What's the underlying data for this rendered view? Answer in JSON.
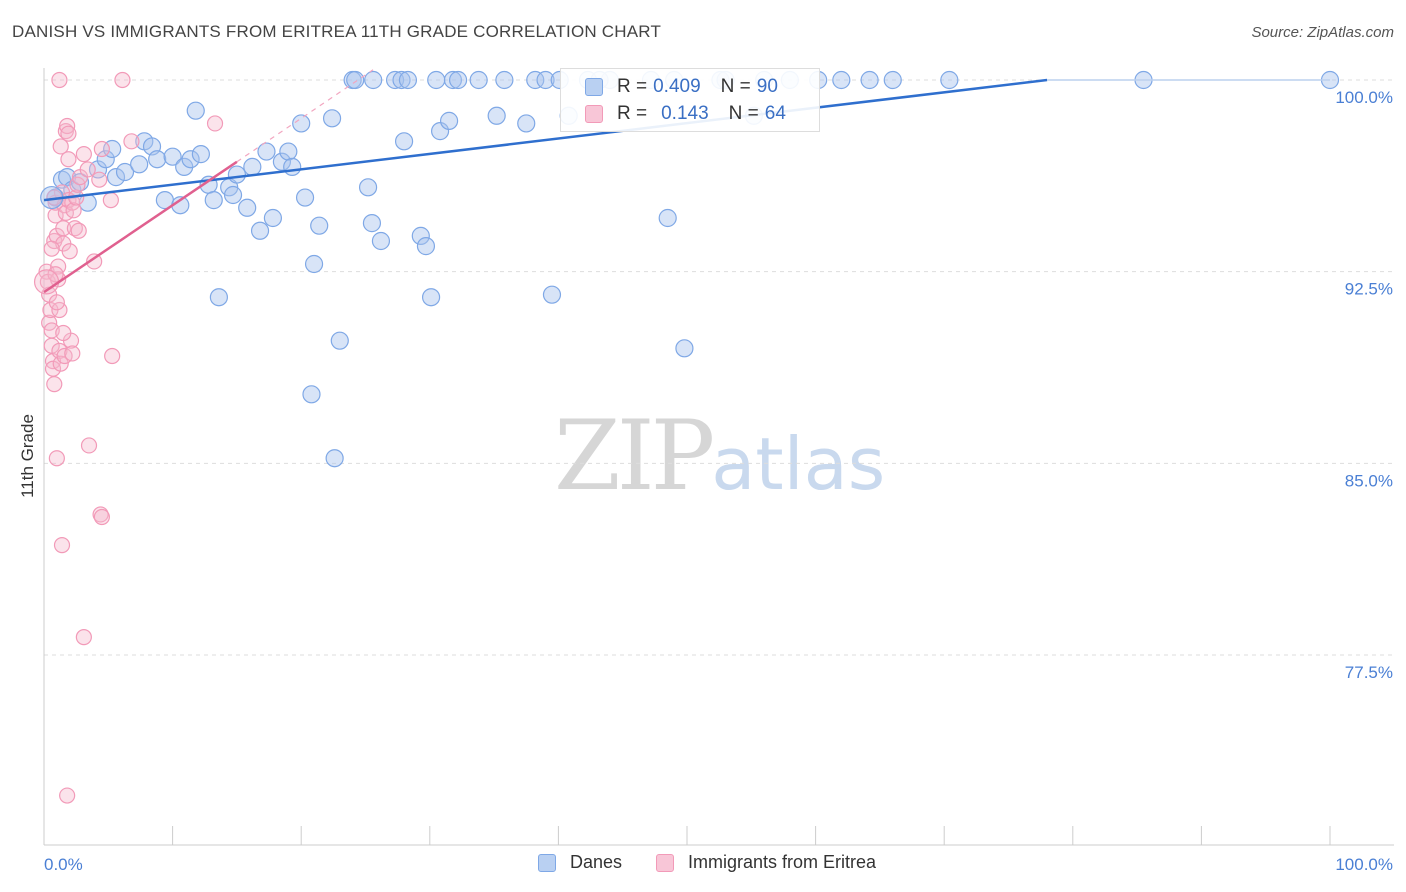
{
  "header": {
    "title": "DANISH VS IMMIGRANTS FROM ERITREA 11TH GRADE CORRELATION CHART",
    "source": "Source: ZipAtlas.com"
  },
  "watermark": {
    "zip": "ZIP",
    "atlas": "atlas"
  },
  "stats_legend": [
    {
      "r_label": "R =",
      "r_value": "0.409",
      "n_label": "N =",
      "n_value": "90",
      "color": "#7fa8e6"
    },
    {
      "r_label": "R =",
      "r_value": "0.143",
      "n_label": "N =",
      "n_value": "64",
      "color": "#f29ab8"
    }
  ],
  "bottom_legend": [
    {
      "label": "Danes",
      "color": "#7fa8e6"
    },
    {
      "label": "Immigrants from Eritrea",
      "color": "#f29ab8"
    }
  ],
  "chart_data": {
    "type": "scatter",
    "title": "DANISH VS IMMIGRANTS FROM ERITREA 11TH GRADE CORRELATION CHART",
    "xlabel": "",
    "ylabel": "11th Grade",
    "xlim": [
      0,
      100
    ],
    "ylim": [
      70.0,
      100.7
    ],
    "x_tick_labels": [
      "0.0%",
      "100.0%"
    ],
    "y_ticks": [
      77.5,
      85.0,
      92.5,
      100.0
    ],
    "y_tick_labels": [
      "77.5%",
      "85.0%",
      "92.5%",
      "100.0%"
    ],
    "grid": true,
    "legend": "bottom",
    "series": [
      {
        "name": "Danes",
        "color": "#4a7fd4",
        "trend": {
          "x": [
            0,
            78
          ],
          "y": [
            95.3,
            100.0
          ]
        },
        "points": [
          [
            0.9,
            95.4
          ],
          [
            1.4,
            96.1
          ],
          [
            1.8,
            96.2
          ],
          [
            2.2,
            95.7
          ],
          [
            2.8,
            96.0
          ],
          [
            3.4,
            95.2
          ],
          [
            4.2,
            96.5
          ],
          [
            4.8,
            96.9
          ],
          [
            5.3,
            97.3
          ],
          [
            5.6,
            96.2
          ],
          [
            6.3,
            96.4
          ],
          [
            7.4,
            96.7
          ],
          [
            7.8,
            97.6
          ],
          [
            8.4,
            97.4
          ],
          [
            8.8,
            96.9
          ],
          [
            9.4,
            95.3
          ],
          [
            10.0,
            97.0
          ],
          [
            10.6,
            95.1
          ],
          [
            10.9,
            96.6
          ],
          [
            11.4,
            96.9
          ],
          [
            11.8,
            98.8
          ],
          [
            12.2,
            97.1
          ],
          [
            12.8,
            95.9
          ],
          [
            13.2,
            95.3
          ],
          [
            14.4,
            95.8
          ],
          [
            14.7,
            95.5
          ],
          [
            15.0,
            96.3
          ],
          [
            15.8,
            95.0
          ],
          [
            16.2,
            96.6
          ],
          [
            16.8,
            94.1
          ],
          [
            17.3,
            97.2
          ],
          [
            17.8,
            94.6
          ],
          [
            18.5,
            96.8
          ],
          [
            19.0,
            97.2
          ],
          [
            19.3,
            96.6
          ],
          [
            20.0,
            98.3
          ],
          [
            20.3,
            95.4
          ],
          [
            21.0,
            92.8
          ],
          [
            21.4,
            94.3
          ],
          [
            22.4,
            98.5
          ],
          [
            23.0,
            89.8
          ],
          [
            24.0,
            100.0
          ],
          [
            24.2,
            100.0
          ],
          [
            25.2,
            95.8
          ],
          [
            25.6,
            100.0
          ],
          [
            25.5,
            94.4
          ],
          [
            26.2,
            93.7
          ],
          [
            27.3,
            100.0
          ],
          [
            27.8,
            100.0
          ],
          [
            28.0,
            97.6
          ],
          [
            28.3,
            100.0
          ],
          [
            29.3,
            93.9
          ],
          [
            29.7,
            93.5
          ],
          [
            30.1,
            91.5
          ],
          [
            30.5,
            100.0
          ],
          [
            30.8,
            98.0
          ],
          [
            31.5,
            98.4
          ],
          [
            31.8,
            100.0
          ],
          [
            32.2,
            100.0
          ],
          [
            33.8,
            100.0
          ],
          [
            35.2,
            98.6
          ],
          [
            35.8,
            100.0
          ],
          [
            37.5,
            98.3
          ],
          [
            38.2,
            100.0
          ],
          [
            39.0,
            100.0
          ],
          [
            39.5,
            91.6
          ],
          [
            40.1,
            100.0
          ],
          [
            40.8,
            98.6
          ],
          [
            42.3,
            100.0
          ],
          [
            44.0,
            100.0
          ],
          [
            47.2,
            100.0
          ],
          [
            48.5,
            94.6
          ],
          [
            49.0,
            100.0
          ],
          [
            49.8,
            89.5
          ],
          [
            52.6,
            100.0
          ],
          [
            53.0,
            100.0
          ],
          [
            56.0,
            100.0
          ],
          [
            60.2,
            100.0
          ],
          [
            62.0,
            100.0
          ],
          [
            64.2,
            100.0
          ],
          [
            66.0,
            100.0
          ],
          [
            70.4,
            100.0
          ],
          [
            85.5,
            100.0
          ],
          [
            100.0,
            100.0
          ],
          [
            13.6,
            91.5
          ],
          [
            20.8,
            87.7
          ],
          [
            22.6,
            85.2
          ],
          [
            55.2,
            98.6
          ],
          [
            58.0,
            100.0
          ],
          [
            43.2,
            100.0
          ]
        ]
      },
      {
        "name": "Immigrants from Eritrea",
        "color": "#e8739c",
        "trend": {
          "x": [
            0,
            15
          ],
          "y": [
            91.7,
            96.8
          ]
        },
        "points": [
          [
            0.2,
            92.5
          ],
          [
            0.3,
            92.1
          ],
          [
            0.4,
            91.6
          ],
          [
            0.4,
            90.5
          ],
          [
            0.5,
            91.0
          ],
          [
            0.6,
            90.2
          ],
          [
            0.6,
            89.6
          ],
          [
            0.7,
            89.0
          ],
          [
            0.7,
            88.7
          ],
          [
            0.8,
            88.1
          ],
          [
            0.8,
            93.7
          ],
          [
            0.9,
            94.7
          ],
          [
            0.9,
            95.2
          ],
          [
            1.0,
            93.9
          ],
          [
            1.1,
            92.7
          ],
          [
            1.1,
            92.2
          ],
          [
            1.2,
            91.0
          ],
          [
            1.2,
            89.4
          ],
          [
            1.3,
            88.9
          ],
          [
            1.3,
            97.4
          ],
          [
            1.4,
            95.6
          ],
          [
            1.5,
            94.2
          ],
          [
            1.5,
            93.6
          ],
          [
            1.6,
            95.1
          ],
          [
            1.6,
            89.2
          ],
          [
            1.7,
            98.0
          ],
          [
            1.7,
            94.8
          ],
          [
            1.8,
            98.2
          ],
          [
            1.9,
            96.9
          ],
          [
            1.9,
            95.3
          ],
          [
            2.0,
            93.3
          ],
          [
            2.1,
            89.8
          ],
          [
            2.2,
            95.2
          ],
          [
            2.2,
            89.3
          ],
          [
            2.3,
            94.9
          ],
          [
            2.4,
            94.2
          ],
          [
            2.5,
            95.4
          ],
          [
            2.6,
            95.9
          ],
          [
            2.8,
            96.2
          ],
          [
            3.1,
            97.1
          ],
          [
            3.4,
            96.5
          ],
          [
            3.9,
            92.9
          ],
          [
            4.3,
            96.1
          ],
          [
            4.5,
            97.3
          ],
          [
            5.2,
            95.3
          ],
          [
            5.3,
            89.2
          ],
          [
            6.8,
            97.6
          ],
          [
            13.3,
            98.3
          ],
          [
            1.0,
            85.2
          ],
          [
            1.4,
            81.8
          ],
          [
            1.8,
            72.0
          ],
          [
            3.1,
            78.2
          ],
          [
            3.5,
            85.7
          ],
          [
            4.4,
            83.0
          ],
          [
            4.5,
            82.9
          ],
          [
            1.2,
            100.0
          ],
          [
            6.1,
            100.0
          ],
          [
            1.9,
            97.9
          ],
          [
            0.6,
            93.4
          ],
          [
            0.9,
            92.4
          ],
          [
            1.5,
            90.1
          ],
          [
            0.8,
            95.4
          ],
          [
            1.0,
            91.3
          ],
          [
            2.7,
            94.1
          ]
        ]
      }
    ]
  }
}
